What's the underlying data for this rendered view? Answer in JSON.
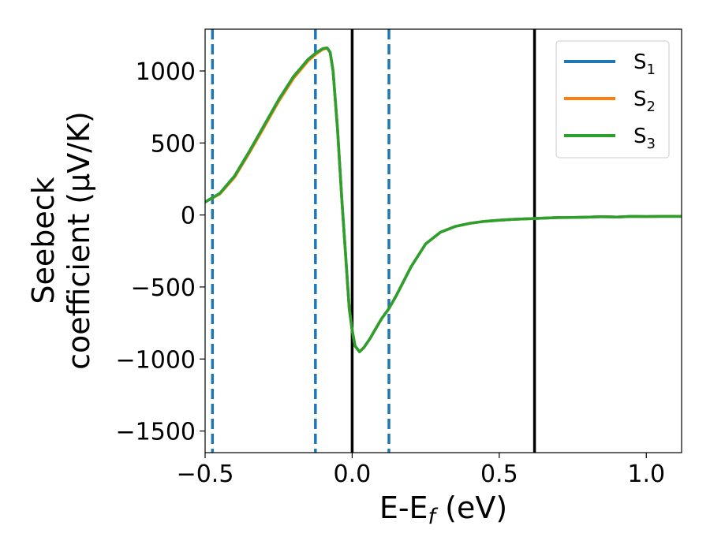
{
  "chart_data": {
    "type": "line",
    "xlabel": {
      "base": "E-E",
      "sub": "f",
      "rest": " (eV)"
    },
    "ylabel": {
      "line1": "Seebeck",
      "line2": "coefficient  (μV/K)"
    },
    "xlim": [
      -0.5,
      1.12
    ],
    "ylim": [
      -1650,
      1290
    ],
    "xticks": [
      -0.5,
      0.0,
      0.5,
      1.0
    ],
    "xtick_labels": [
      "−0.5",
      "0.0",
      "0.5",
      "1.0"
    ],
    "yticks": [
      -1500,
      -1000,
      -500,
      0,
      500,
      1000
    ],
    "ytick_labels": [
      "−1500",
      "−1000",
      "−500",
      "0",
      "500",
      "1000"
    ],
    "legend_position": "top-right",
    "vlines": [
      {
        "x": -0.475,
        "color": "#1f77b4",
        "style": "dashed"
      },
      {
        "x": -0.125,
        "color": "#1f77b4",
        "style": "dashed"
      },
      {
        "x": 0.0,
        "color": "#000000",
        "style": "solid"
      },
      {
        "x": 0.125,
        "color": "#1f77b4",
        "style": "dashed"
      },
      {
        "x": 0.62,
        "color": "#000000",
        "style": "solid"
      }
    ],
    "series": [
      {
        "name": "S",
        "sub": "1",
        "color": "#1f77b4",
        "x": [
          -0.5,
          -0.45,
          -0.4,
          -0.35,
          -0.3,
          -0.25,
          -0.2,
          -0.15,
          -0.12,
          -0.1,
          -0.085,
          -0.075,
          -0.065,
          -0.05,
          -0.035,
          -0.02,
          -0.01,
          0.0,
          0.01,
          0.025,
          0.04,
          0.06,
          0.08,
          0.1,
          0.125,
          0.15,
          0.2,
          0.25,
          0.3,
          0.35,
          0.4,
          0.45,
          0.5,
          0.55,
          0.6,
          0.65,
          0.7,
          0.75,
          0.8,
          0.85,
          0.9,
          0.95,
          1.0,
          1.05,
          1.12
        ],
        "y": [
          90,
          150,
          270,
          440,
          620,
          800,
          960,
          1080,
          1130,
          1155,
          1160,
          1130,
          1000,
          600,
          100,
          -350,
          -650,
          -800,
          -910,
          -950,
          -920,
          -860,
          -790,
          -720,
          -650,
          -560,
          -360,
          -200,
          -120,
          -80,
          -58,
          -44,
          -36,
          -30,
          -26,
          -22,
          -18,
          -17,
          -15,
          -12,
          -14,
          -10,
          -11,
          -10,
          -10
        ]
      },
      {
        "name": "S",
        "sub": "2",
        "color": "#ff7f0e",
        "x": [
          -0.5,
          -0.45,
          -0.4,
          -0.35,
          -0.3,
          -0.25,
          -0.2,
          -0.15,
          -0.12,
          -0.1,
          -0.085,
          -0.075,
          -0.065,
          -0.05,
          -0.035,
          -0.02,
          -0.01,
          0.0,
          0.01,
          0.025,
          0.04,
          0.06,
          0.08,
          0.1,
          0.125,
          0.15,
          0.2,
          0.25,
          0.3,
          0.35,
          0.4,
          0.45,
          0.5,
          0.55,
          0.6,
          0.65,
          0.7,
          0.75,
          0.8,
          0.85,
          0.9,
          0.95,
          1.0,
          1.05,
          1.12
        ],
        "y": [
          90,
          145,
          262,
          430,
          608,
          788,
          948,
          1070,
          1122,
          1150,
          1158,
          1128,
          998,
          598,
          98,
          -352,
          -652,
          -800,
          -910,
          -950,
          -920,
          -860,
          -790,
          -720,
          -650,
          -560,
          -360,
          -200,
          -120,
          -80,
          -58,
          -44,
          -36,
          -30,
          -26,
          -22,
          -18,
          -17,
          -15,
          -12,
          -14,
          -10,
          -11,
          -10,
          -10
        ]
      },
      {
        "name": "S",
        "sub": "3",
        "color": "#2ca02c",
        "x": [
          -0.5,
          -0.45,
          -0.4,
          -0.35,
          -0.3,
          -0.25,
          -0.2,
          -0.15,
          -0.12,
          -0.1,
          -0.085,
          -0.075,
          -0.065,
          -0.05,
          -0.035,
          -0.02,
          -0.01,
          0.0,
          0.01,
          0.025,
          0.04,
          0.06,
          0.08,
          0.1,
          0.125,
          0.15,
          0.2,
          0.25,
          0.3,
          0.35,
          0.4,
          0.45,
          0.5,
          0.55,
          0.6,
          0.65,
          0.7,
          0.75,
          0.8,
          0.85,
          0.9,
          0.95,
          1.0,
          1.05,
          1.12
        ],
        "y": [
          90,
          150,
          270,
          440,
          620,
          800,
          960,
          1080,
          1130,
          1155,
          1160,
          1130,
          1000,
          600,
          100,
          -350,
          -650,
          -800,
          -910,
          -950,
          -920,
          -860,
          -790,
          -720,
          -650,
          -560,
          -360,
          -200,
          -120,
          -80,
          -58,
          -44,
          -36,
          -30,
          -26,
          -22,
          -18,
          -17,
          -15,
          -12,
          -14,
          -10,
          -11,
          -10,
          -10
        ]
      }
    ]
  }
}
